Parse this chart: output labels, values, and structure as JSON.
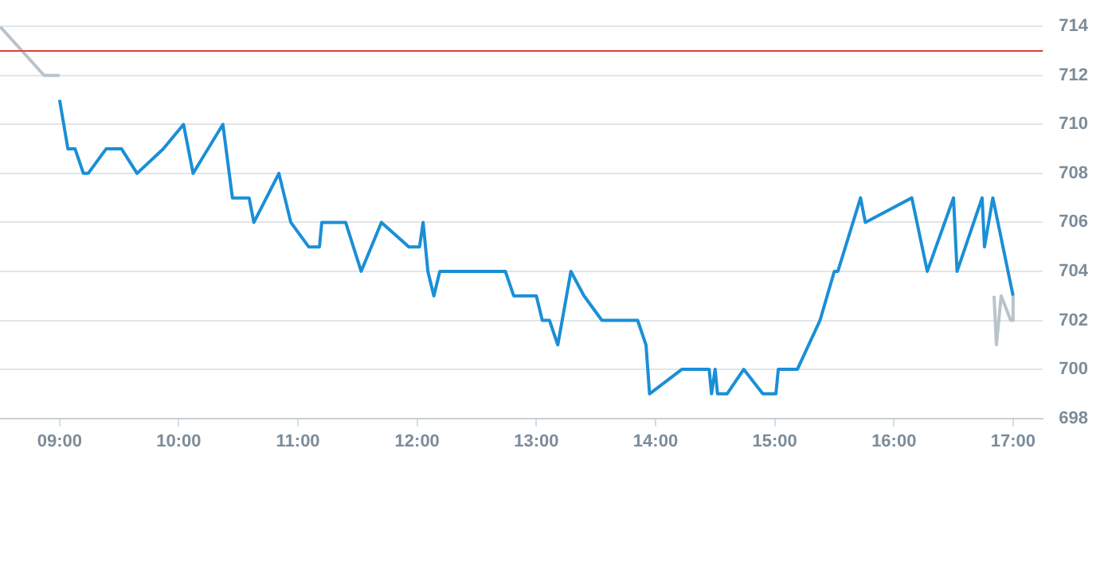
{
  "chart_data": {
    "type": "line",
    "xlim": [
      8.5,
      17.25
    ],
    "xticks": [
      {
        "value": 9,
        "label": "09:00"
      },
      {
        "value": 10,
        "label": "10:00"
      },
      {
        "value": 11,
        "label": "11:00"
      },
      {
        "value": 12,
        "label": "12:00"
      },
      {
        "value": 13,
        "label": "13:00"
      },
      {
        "value": 14,
        "label": "14:00"
      },
      {
        "value": 15,
        "label": "15:00"
      },
      {
        "value": 16,
        "label": "16:00"
      },
      {
        "value": 17,
        "label": "17:00"
      }
    ],
    "ylim": [
      698,
      714
    ],
    "yticks": [
      698,
      700,
      702,
      704,
      706,
      708,
      710,
      712,
      714
    ],
    "grid": "y",
    "legend": false,
    "marker": "none",
    "line_style": "solid",
    "ref_lines": [
      {
        "axis": "y",
        "value": 713,
        "color": "#e0403a"
      }
    ],
    "series": [
      {
        "color": "#b8c4cc",
        "x": [
          8.5,
          8.87,
          9.0
        ],
        "values": [
          714,
          712,
          712
        ]
      },
      {
        "color": "#1a8fd6",
        "x": [
          9.0,
          9.07,
          9.13,
          9.2,
          9.24,
          9.39,
          9.52,
          9.65,
          9.87,
          10.04,
          10.12,
          10.37,
          10.45,
          10.59,
          10.63,
          10.84,
          10.94,
          11.09,
          11.18,
          11.2,
          11.4,
          11.53,
          11.7,
          11.93,
          12.02,
          12.05,
          12.09,
          12.14,
          12.19,
          12.74,
          12.81,
          13.0,
          13.05,
          13.11,
          13.18,
          13.29,
          13.4,
          13.55,
          13.85,
          13.92,
          13.95,
          14.22,
          14.45,
          14.47,
          14.5,
          14.52,
          14.6,
          14.74,
          14.9,
          15.01,
          15.03,
          15.19,
          15.38,
          15.44,
          15.5,
          15.53,
          15.72,
          15.76,
          16.15,
          16.28,
          16.5,
          16.53,
          16.74,
          16.76,
          16.83,
          17.0
        ],
        "values": [
          711,
          709,
          709,
          708,
          708,
          709,
          709,
          708,
          709,
          710,
          708,
          710,
          707,
          707,
          706,
          708,
          706,
          705,
          705,
          706,
          706,
          704,
          706,
          705,
          705,
          706,
          704,
          703,
          704,
          704,
          703,
          703,
          702,
          702,
          701,
          704,
          703,
          702,
          702,
          701,
          699,
          700,
          700,
          699,
          700,
          699,
          699,
          700,
          699,
          699,
          700,
          700,
          702,
          703,
          704,
          704,
          707,
          706,
          707,
          704,
          707,
          704,
          707,
          705,
          707,
          703
        ]
      },
      {
        "color": "#b8c4cc",
        "x": [
          16.84,
          16.86,
          16.9,
          16.98,
          17.0,
          17.0
        ],
        "values": [
          703,
          701,
          703,
          702,
          702,
          703
        ]
      }
    ]
  }
}
